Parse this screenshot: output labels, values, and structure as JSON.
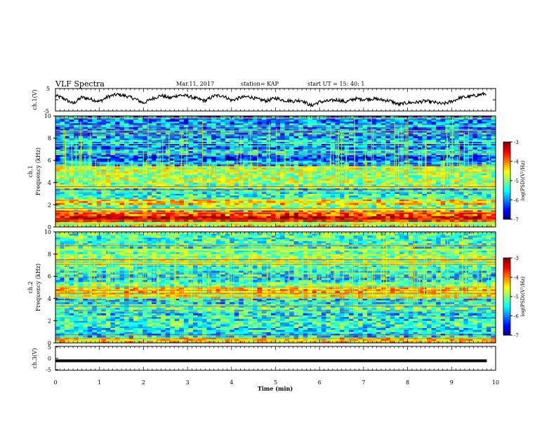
{
  "header": {
    "title": "VLF Spectra",
    "date": "Mar.11, 2017",
    "station": "station= KAP",
    "start": "start  UT =   15: 40: 1"
  },
  "chart_data": [
    {
      "type": "line",
      "id": "ch1",
      "title": "",
      "ylabel": "ch.1(V)",
      "ylim": [
        -5,
        5
      ],
      "yticks": [
        "5",
        "-5"
      ],
      "xlim": [
        0,
        10
      ],
      "series": [
        {
          "x": [
            0.0,
            0.2,
            0.4,
            0.6,
            0.8,
            1.0,
            1.2,
            1.4,
            1.6,
            1.8,
            2.0,
            2.2,
            2.4,
            2.6,
            2.8,
            3.0,
            3.2,
            3.4,
            3.6,
            3.8,
            4.0,
            4.2,
            4.4,
            4.6,
            4.8,
            5.0,
            5.2,
            5.4,
            5.6,
            5.8,
            6.0,
            6.2,
            6.4,
            6.6,
            6.8,
            7.0,
            7.2,
            7.4,
            7.6,
            7.8,
            8.0,
            8.2,
            8.4,
            8.6,
            8.8,
            9.0,
            9.2,
            9.4,
            9.6,
            9.8
          ],
          "y": [
            2.0,
            0.5,
            -1.8,
            1.2,
            0.3,
            -0.8,
            1.5,
            2.5,
            1.8,
            0.5,
            -1.5,
            0.5,
            2.0,
            0.8,
            2.2,
            1.8,
            0.6,
            -0.5,
            1.8,
            2.0,
            -0.3,
            1.0,
            1.5,
            0.2,
            -0.5,
            0.8,
            -0.3,
            -0.6,
            -0.2,
            -2.8,
            -1.0,
            -0.6,
            0.0,
            -1.0,
            0.5,
            0.2,
            0.5,
            0.0,
            -0.5,
            -2.2,
            -1.4,
            -1.2,
            -0.6,
            -1.2,
            -2.0,
            -0.8,
            1.0,
            1.5,
            2.2,
            3.0
          ]
        }
      ]
    },
    {
      "type": "heatmap",
      "id": "ch1_spec",
      "ylabel": "ch.1\nFrequency (kHz)",
      "ylim": [
        0,
        10
      ],
      "yticks": [
        "0",
        "2",
        "4",
        "6",
        "8",
        "10"
      ],
      "xlim": [
        0,
        10
      ],
      "colorbar": {
        "label": "log(PSD)(V²/Hz)",
        "range": [
          -7,
          -3
        ],
        "ticks": [
          "-3",
          "-4",
          "-5",
          "-6",
          "-7"
        ]
      },
      "band_kHz": [
        0.0,
        0.5,
        1.0,
        1.5,
        2.0,
        2.5,
        3.0,
        3.5,
        4.0,
        4.5,
        5.0,
        5.5,
        6.0,
        6.5,
        7.0,
        7.5,
        8.0,
        8.5,
        9.0,
        9.5,
        10.0
      ],
      "log_psd_mean": [
        -4.6,
        -3.3,
        -3.8,
        -5.0,
        -4.4,
        -5.3,
        -5.6,
        -5.0,
        -4.8,
        -4.9,
        -4.7,
        -5.8,
        -6.2,
        -5.6,
        -6.0,
        -5.7,
        -5.8,
        -6.0,
        -5.9,
        -6.0,
        -5.8
      ]
    },
    {
      "type": "heatmap",
      "id": "ch2_spec",
      "ylabel": "ch.2\nFrequency (kHz)",
      "ylim": [
        0,
        10
      ],
      "yticks": [
        "0",
        "2",
        "4",
        "6",
        "8",
        "10"
      ],
      "xlim": [
        0,
        10
      ],
      "colorbar": {
        "label": "log(PSD)(V²/Hz)",
        "range": [
          -7,
          -3
        ],
        "ticks": [
          "-3",
          "-4",
          "-5",
          "-6",
          "-7"
        ]
      },
      "band_kHz": [
        0.0,
        0.5,
        1.0,
        1.5,
        2.0,
        2.5,
        3.0,
        3.5,
        4.0,
        4.5,
        5.0,
        5.5,
        6.0,
        6.5,
        7.0,
        7.5,
        8.0,
        8.5,
        9.0,
        9.5,
        10.0
      ],
      "log_psd_mean": [
        -4.4,
        -5.6,
        -5.5,
        -5.3,
        -5.4,
        -5.6,
        -5.2,
        -5.6,
        -4.6,
        -4.3,
        -5.0,
        -5.6,
        -5.5,
        -5.3,
        -4.8,
        -4.9,
        -5.1,
        -5.4,
        -5.3,
        -5.2,
        -5.1
      ]
    },
    {
      "type": "line",
      "id": "ch3",
      "ylabel": "ch.3(V)",
      "ylim": [
        -5,
        5
      ],
      "yticks": [
        "5",
        "0",
        "-5"
      ],
      "xlim": [
        0,
        10
      ],
      "xlabel": "Time (min)",
      "xticks": [
        "0",
        "1",
        "2",
        "3",
        "4",
        "5",
        "6",
        "7",
        "8",
        "9",
        "10"
      ],
      "series": [
        {
          "x": [
            0,
            9.8
          ],
          "y": [
            -1.1,
            -1.1
          ]
        }
      ]
    }
  ],
  "colors": {
    "colormap": [
      "#000080",
      "#0000ff",
      "#0080ff",
      "#00ffff",
      "#80ff80",
      "#ffff00",
      "#ff8000",
      "#ff0000",
      "#800000"
    ],
    "line": "#000000"
  }
}
